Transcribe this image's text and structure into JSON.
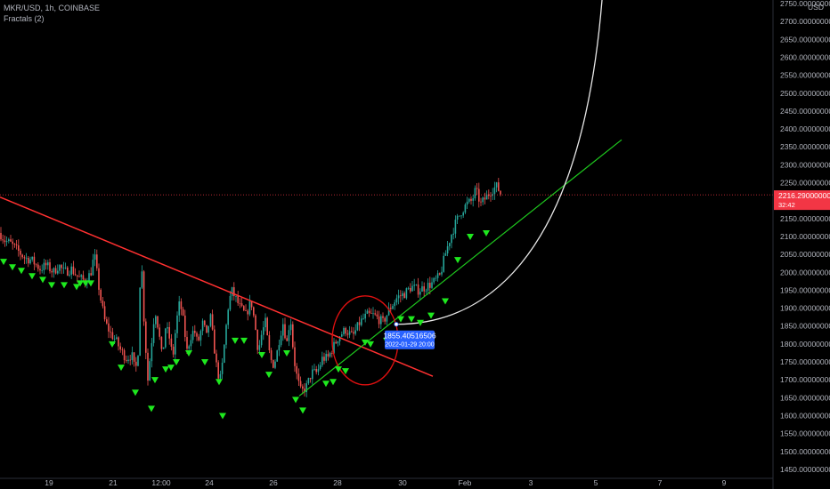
{
  "header": {
    "symbol": "MKR/USD, 1h, COINBASE",
    "indicator": "Fractals (2)"
  },
  "currency": "USD",
  "price_tag": {
    "value": "2216.29000000",
    "countdown": "32:42",
    "color": "#f23645"
  },
  "callout": {
    "price": "1855.40516506",
    "date": "2022-01-29 20:00",
    "color": "#2962ff"
  },
  "colors": {
    "up": "#26a69a",
    "down": "#ef5350",
    "fractal": "#1ee81e",
    "resistance": "#ff3030",
    "support": "#1ec81e",
    "arc": "#e8e8e8",
    "circle": "#e01010"
  },
  "icons": {
    "fractal": "triangle-down-icon"
  },
  "chart_data": {
    "type": "candlestick",
    "title": "MKR/USD, 1h, COINBASE",
    "ylim": [
      1425,
      2760
    ],
    "y_ticks": [
      "2750.00000000",
      "2700.00000000",
      "2650.00000000",
      "2600.00000000",
      "2550.00000000",
      "2500.00000000",
      "2450.00000000",
      "2400.00000000",
      "2350.00000000",
      "2300.00000000",
      "2250.00000000",
      "2200.00000000",
      "2150.00000000",
      "2100.00000000",
      "2050.00000000",
      "2000.00000000",
      "1950.00000000",
      "1900.00000000",
      "1850.00000000",
      "1800.00000000",
      "1750.00000000",
      "1700.00000000",
      "1650.00000000",
      "1600.00000000",
      "1550.00000000",
      "1500.00000000",
      "1450.00000000"
    ],
    "x_ticks": [
      "19",
      "21",
      "12:00",
      "24",
      "26",
      "28",
      "30",
      "Feb",
      "3",
      "5",
      "7",
      "9"
    ],
    "price_anchors": [
      [
        0,
        2110
      ],
      [
        5,
        2090
      ],
      [
        12,
        2080
      ],
      [
        20,
        2060
      ],
      [
        28,
        2040
      ],
      [
        35,
        2035
      ],
      [
        45,
        2010
      ],
      [
        52,
        2020
      ],
      [
        60,
        2000
      ],
      [
        66,
        2020
      ],
      [
        72,
        2000
      ],
      [
        80,
        2010
      ],
      [
        88,
        1985
      ],
      [
        96,
        1975
      ],
      [
        102,
        2000
      ],
      [
        106,
        2050
      ],
      [
        112,
        1940
      ],
      [
        118,
        1860
      ],
      [
        124,
        1830
      ],
      [
        130,
        1810
      ],
      [
        136,
        1780
      ],
      [
        142,
        1760
      ],
      [
        148,
        1770
      ],
      [
        152,
        1720
      ],
      [
        156,
        1800
      ],
      [
        158,
        2080
      ],
      [
        162,
        1850
      ],
      [
        166,
        1700
      ],
      [
        170,
        1800
      ],
      [
        174,
        1900
      ],
      [
        178,
        1840
      ],
      [
        182,
        1760
      ],
      [
        186,
        1850
      ],
      [
        190,
        1820
      ],
      [
        194,
        1760
      ],
      [
        198,
        1860
      ],
      [
        202,
        1920
      ],
      [
        206,
        1860
      ],
      [
        210,
        1780
      ],
      [
        214,
        1820
      ],
      [
        218,
        1840
      ],
      [
        222,
        1800
      ],
      [
        228,
        1860
      ],
      [
        232,
        1820
      ],
      [
        236,
        1880
      ],
      [
        240,
        1800
      ],
      [
        244,
        1720
      ],
      [
        248,
        1700
      ],
      [
        252,
        1800
      ],
      [
        256,
        1900
      ],
      [
        260,
        1950
      ],
      [
        264,
        1930
      ],
      [
        270,
        1900
      ],
      [
        276,
        1880
      ],
      [
        282,
        1920
      ],
      [
        286,
        1860
      ],
      [
        290,
        1780
      ],
      [
        294,
        1830
      ],
      [
        298,
        1860
      ],
      [
        302,
        1780
      ],
      [
        306,
        1740
      ],
      [
        310,
        1760
      ],
      [
        314,
        1820
      ],
      [
        318,
        1860
      ],
      [
        322,
        1800
      ],
      [
        326,
        1880
      ],
      [
        330,
        1760
      ],
      [
        334,
        1700
      ],
      [
        338,
        1665
      ],
      [
        344,
        1680
      ],
      [
        350,
        1720
      ],
      [
        356,
        1720
      ],
      [
        362,
        1760
      ],
      [
        368,
        1760
      ],
      [
        374,
        1790
      ],
      [
        380,
        1820
      ],
      [
        388,
        1840
      ],
      [
        396,
        1820
      ],
      [
        404,
        1860
      ],
      [
        412,
        1880
      ],
      [
        420,
        1880
      ],
      [
        430,
        1860
      ],
      [
        438,
        1900
      ],
      [
        446,
        1930
      ],
      [
        454,
        1940
      ],
      [
        462,
        1960
      ],
      [
        470,
        1950
      ],
      [
        478,
        1960
      ],
      [
        486,
        1970
      ],
      [
        494,
        1990
      ],
      [
        500,
        2050
      ],
      [
        506,
        2100
      ],
      [
        512,
        2140
      ],
      [
        518,
        2170
      ],
      [
        524,
        2190
      ],
      [
        530,
        2200
      ],
      [
        534,
        2230
      ],
      [
        540,
        2190
      ],
      [
        546,
        2210
      ],
      [
        552,
        2230
      ],
      [
        558,
        2240
      ],
      [
        562,
        2220
      ]
    ],
    "fractals": [
      [
        4,
        2030
      ],
      [
        14,
        2015
      ],
      [
        24,
        2005
      ],
      [
        36,
        1990
      ],
      [
        48,
        1980
      ],
      [
        58,
        1965
      ],
      [
        72,
        1965
      ],
      [
        86,
        1960
      ],
      [
        90,
        1970
      ],
      [
        96,
        1970
      ],
      [
        102,
        1970
      ],
      [
        126,
        1800
      ],
      [
        136,
        1735
      ],
      [
        152,
        1665
      ],
      [
        170,
        1620
      ],
      [
        174,
        1700
      ],
      [
        186,
        1730
      ],
      [
        192,
        1735
      ],
      [
        198,
        1750
      ],
      [
        212,
        1775
      ],
      [
        230,
        1750
      ],
      [
        246,
        1695
      ],
      [
        250,
        1600
      ],
      [
        264,
        1810
      ],
      [
        274,
        1810
      ],
      [
        294,
        1770
      ],
      [
        302,
        1715
      ],
      [
        322,
        1775
      ],
      [
        332,
        1645
      ],
      [
        340,
        1615
      ],
      [
        366,
        1690
      ],
      [
        374,
        1695
      ],
      [
        380,
        1730
      ],
      [
        388,
        1725
      ],
      [
        410,
        1805
      ],
      [
        416,
        1800
      ],
      [
        434,
        1810
      ],
      [
        450,
        1870
      ],
      [
        462,
        1870
      ],
      [
        472,
        1860
      ],
      [
        484,
        1880
      ],
      [
        500,
        1920
      ],
      [
        514,
        2035
      ],
      [
        528,
        2100
      ],
      [
        546,
        2110
      ]
    ],
    "resistance_line": [
      [
        0,
        2210
      ],
      [
        486,
        1710
      ]
    ],
    "support_line": [
      [
        336,
        1655
      ],
      [
        698,
        2370
      ]
    ],
    "arc": {
      "start": [
        445,
        1855
      ],
      "end": [
        676,
        2760
      ]
    },
    "circle": {
      "center": [
        410,
        1810
      ],
      "rx": 37,
      "ry": 50
    },
    "current_price": 2216.29,
    "callout_point": [
      445,
      1855
    ]
  }
}
